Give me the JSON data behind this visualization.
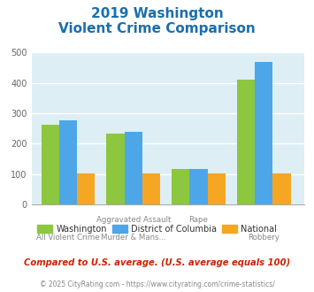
{
  "title_line1": "2019 Washington",
  "title_line2": "Violent Crime Comparison",
  "series": {
    "Washington": [
      262,
      232,
      118,
      410
    ],
    "District of Columbia": [
      278,
      238,
      118,
      470
    ],
    "National": [
      102,
      103,
      103,
      103
    ]
  },
  "colors": {
    "Washington": "#8dc63f",
    "District of Columbia": "#4da6e8",
    "National": "#f5a623"
  },
  "ylim": [
    0,
    500
  ],
  "yticks": [
    0,
    100,
    200,
    300,
    400,
    500
  ],
  "plot_bg": "#ddeef4",
  "title_color": "#1a6fad",
  "xtick_top_labels": [
    "",
    "Aggravated Assault",
    "Rape",
    ""
  ],
  "xtick_bot_labels": [
    "All Violent Crime",
    "Murder & Mans...",
    "",
    "Robbery"
  ],
  "footer_text": "Compared to U.S. average. (U.S. average equals 100)",
  "copyright_text": "© 2025 CityRating.com - https://www.cityrating.com/crime-statistics/",
  "bar_width": 0.22,
  "group_positions": [
    0.35,
    1.15,
    1.95,
    2.75
  ]
}
